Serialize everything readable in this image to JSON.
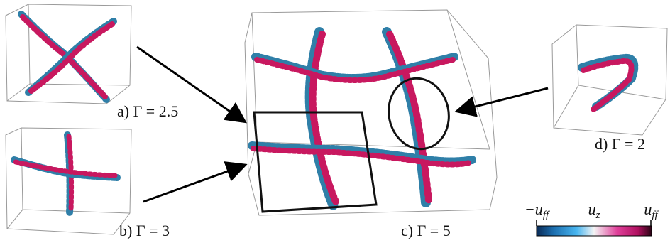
{
  "panels": [
    {
      "label": "a) Γ = 2.5"
    },
    {
      "label": "b) Γ = 3"
    },
    {
      "label": "c) Γ = 5"
    },
    {
      "label": "d) Γ = 2"
    }
  ],
  "colorbar": {
    "min_label": {
      "symbol": "−u",
      "subscript": "ff"
    },
    "center_label": {
      "symbol": "u",
      "subscript": "z"
    },
    "max_label": {
      "symbol": "u",
      "subscript": "ff"
    }
  }
}
